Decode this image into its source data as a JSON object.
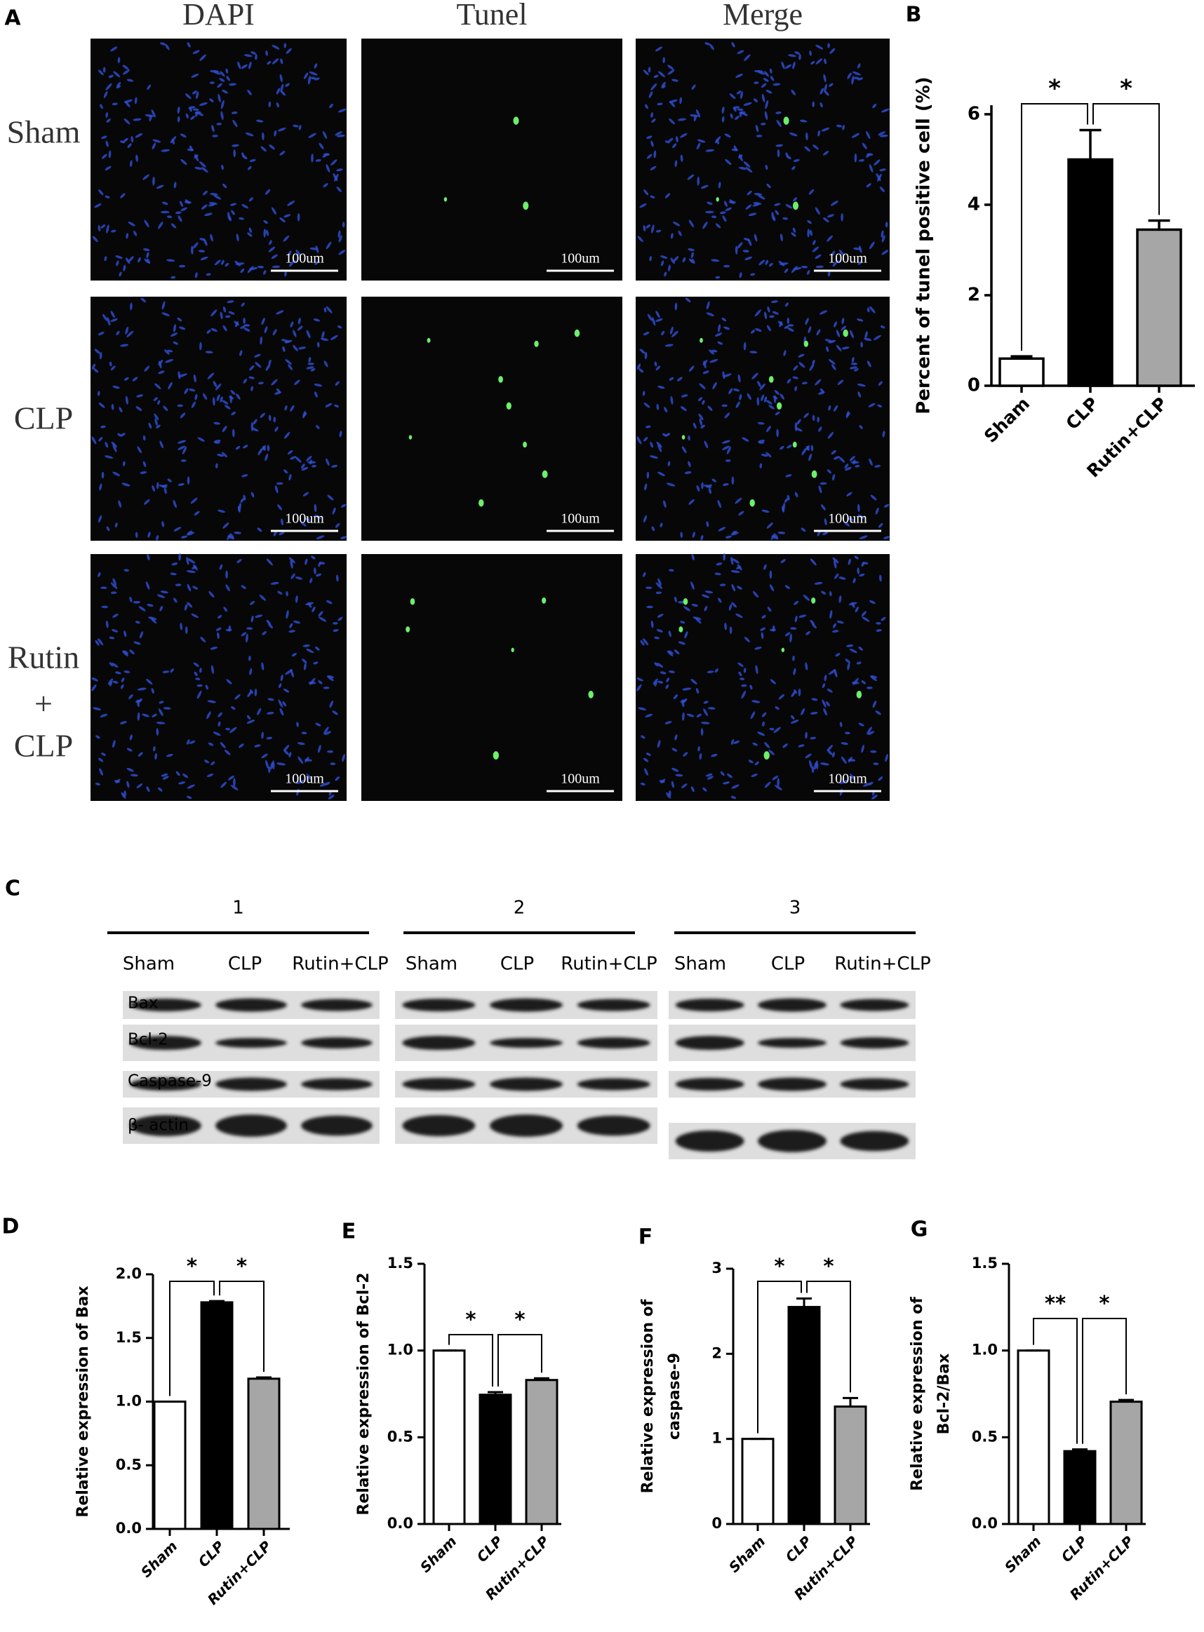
{
  "panel_a": {
    "letter": "A",
    "columns": [
      "DAPI",
      "Tunel",
      "Merge"
    ],
    "rows": [
      [
        "Sham"
      ],
      [
        "CLP"
      ],
      [
        "Rutin",
        "+",
        "CLP"
      ]
    ],
    "scale_bar": "100um"
  },
  "panel_c": {
    "letter": "C",
    "replicates": [
      "1",
      "2",
      "3"
    ],
    "lanes": [
      "Sham",
      "CLP",
      "Rutin+CLP"
    ],
    "proteins": [
      "Bax",
      "Bcl-2",
      "Caspase-9",
      "β- actin"
    ]
  },
  "chart_data": [
    {
      "type": "bar",
      "panel": "B",
      "ylabel": "Percent of tunel positive cell (%)",
      "categories": [
        "Sham",
        "CLP",
        "Rutin+CLP"
      ],
      "values": [
        0.6,
        5.0,
        3.45
      ],
      "errors": [
        0.05,
        0.65,
        0.2
      ],
      "colors": [
        "#ffffff",
        "#000000",
        "#a6a6a6"
      ],
      "ylim": [
        0,
        6.2
      ],
      "yticks": [
        0,
        2,
        4,
        6
      ],
      "significance": [
        "*",
        "*"
      ]
    },
    {
      "type": "bar",
      "panel": "D",
      "ylabel": "Relative expression of Bax",
      "categories": [
        "Sham",
        "CLP",
        "Rutin+CLP"
      ],
      "values": [
        1.0,
        1.78,
        1.18
      ],
      "errors": [
        0,
        0.01,
        0.01
      ],
      "colors": [
        "#ffffff",
        "#000000",
        "#a6a6a6"
      ],
      "ylim": [
        0,
        2
      ],
      "yticks": [
        {
          "value": 0,
          "label": "0.0"
        },
        {
          "value": 0.5,
          "label": "0.5"
        },
        {
          "value": 1,
          "label": "1.0"
        },
        {
          "value": 1.5,
          "label": "1.5"
        },
        {
          "value": 2,
          "label": "2.0"
        }
      ],
      "significance": [
        "*",
        "*"
      ]
    },
    {
      "type": "bar",
      "panel": "E",
      "ylabel": "Relative expression of Bcl-2",
      "categories": [
        "Sham",
        "CLP",
        "Rutin+CLP"
      ],
      "values": [
        1.0,
        0.745,
        0.83
      ],
      "errors": [
        0,
        0.015,
        0.01
      ],
      "colors": [
        "#ffffff",
        "#000000",
        "#a6a6a6"
      ],
      "ylim": [
        0,
        1.5
      ],
      "yticks": [
        {
          "value": 0,
          "label": "0.0"
        },
        {
          "value": 0.5,
          "label": "0.5"
        },
        {
          "value": 1,
          "label": "1.0"
        },
        {
          "value": 1.5,
          "label": "1.5"
        }
      ],
      "significance": [
        "*",
        "*"
      ]
    },
    {
      "type": "bar",
      "panel": "F",
      "ylabel": [
        "Relative expression of",
        "caspase-9"
      ],
      "categories": [
        "Sham",
        "CLP",
        "Rutin+CLP"
      ],
      "values": [
        1.0,
        2.55,
        1.38
      ],
      "errors": [
        0,
        0.1,
        0.1
      ],
      "colors": [
        "#ffffff",
        "#000000",
        "#a6a6a6"
      ],
      "ylim": [
        0,
        3
      ],
      "yticks": [
        0,
        1,
        2,
        3
      ],
      "significance": [
        "*",
        "*"
      ]
    },
    {
      "type": "bar",
      "panel": "G",
      "ylabel": [
        "Relative expression of",
        "Bcl-2/Bax"
      ],
      "categories": [
        "Sham",
        "CLP",
        "Rutin+CLP"
      ],
      "values": [
        1.0,
        0.42,
        0.705
      ],
      "errors": [
        0,
        0.01,
        0.01
      ],
      "colors": [
        "#ffffff",
        "#000000",
        "#a6a6a6"
      ],
      "ylim": [
        0,
        1.5
      ],
      "yticks": [
        {
          "value": 0,
          "label": "0.0"
        },
        {
          "value": 0.5,
          "label": "0.5"
        },
        {
          "value": 1,
          "label": "1.0"
        },
        {
          "value": 1.5,
          "label": "1.5"
        }
      ],
      "significance": [
        "**",
        "*"
      ]
    }
  ]
}
